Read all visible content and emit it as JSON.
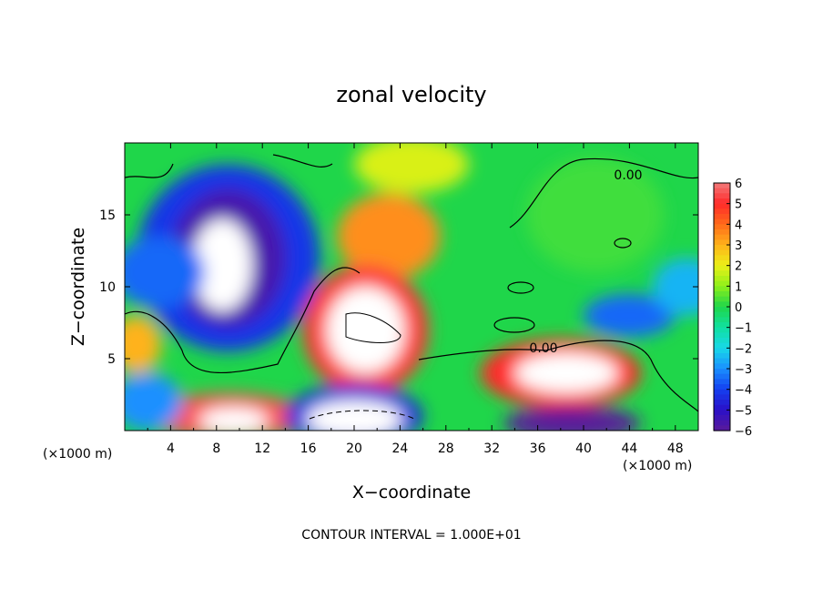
{
  "chart_data": {
    "type": "heatmap",
    "title": "zonal velocity",
    "xlabel": "X−coordinate",
    "ylabel": "Z−coordinate",
    "x_unit_left": "(×1000 m)",
    "x_unit_right": "(×1000 m)",
    "xlim": [
      0,
      50
    ],
    "ylim": [
      0,
      20
    ],
    "x_ticks": [
      "4",
      "8",
      "12",
      "16",
      "20",
      "24",
      "28",
      "32",
      "36",
      "40",
      "44",
      "48"
    ],
    "y_ticks": [
      "5",
      "10",
      "15"
    ],
    "colorbar": {
      "range": [
        -6,
        6
      ],
      "ticks": [
        "6",
        "5",
        "4",
        "3",
        "2",
        "1",
        "0",
        "−1",
        "−2",
        "−3",
        "−4",
        "−5",
        "−6"
      ]
    },
    "contour_labels": [
      "0.00",
      "0.00"
    ],
    "footnote": "CONTOUR INTERVAL = 1.000E+01",
    "field_features": [
      {
        "region": "upper-left jet",
        "x": 9,
        "z": 12,
        "value": -6.5
      },
      {
        "region": "central core",
        "x": 21,
        "z": 7,
        "value": 7
      },
      {
        "region": "upper center",
        "x": 23,
        "z": 13.5,
        "value": 3.5
      },
      {
        "region": "lower right core",
        "x": 38,
        "z": 4,
        "value": 7
      },
      {
        "region": "near-surface left",
        "x": 9,
        "z": 1,
        "value": 7
      },
      {
        "region": "near-surface center",
        "x": 20,
        "z": 1,
        "value": -7
      },
      {
        "region": "near-surface right",
        "x": 39,
        "z": 0.5,
        "value": -7
      },
      {
        "region": "far left",
        "x": 1,
        "z": 6,
        "value": 3
      },
      {
        "region": "right interior",
        "x": 41,
        "z": 15,
        "value": 0
      }
    ]
  }
}
